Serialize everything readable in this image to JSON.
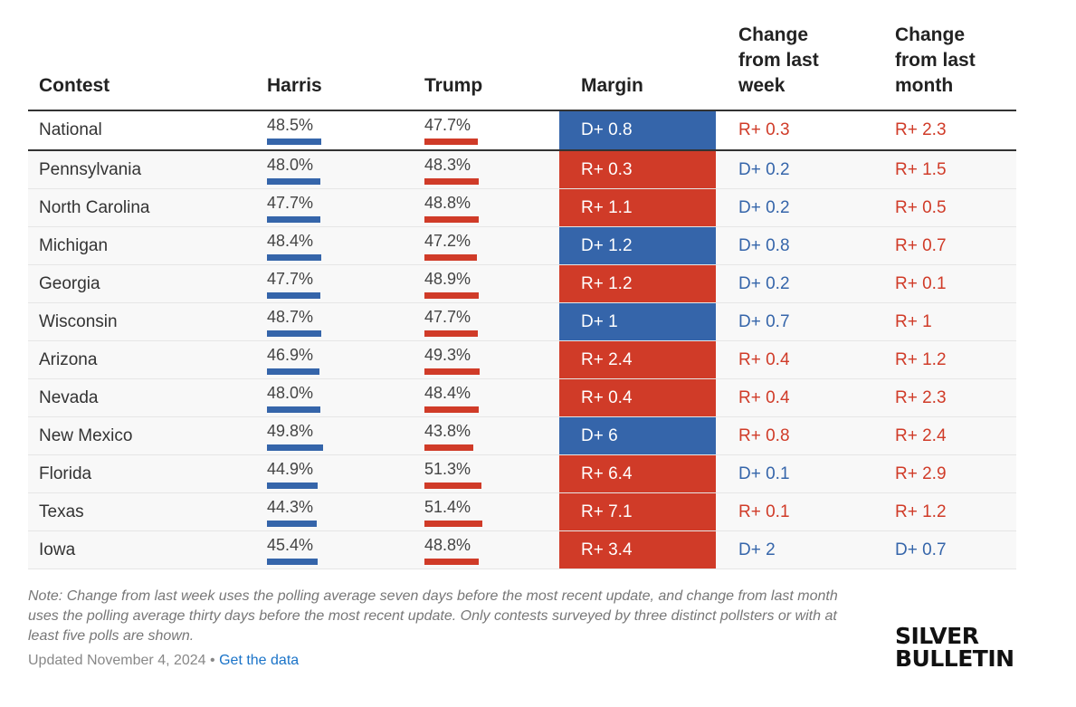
{
  "colors": {
    "dem": "#3565aa",
    "rep": "#d03b28"
  },
  "header": {
    "contest": "Contest",
    "harris": "Harris",
    "trump": "Trump",
    "margin": "Margin",
    "week_line1": "Change",
    "week_line2": "from last",
    "week_line3": "week",
    "month_line1": "Change",
    "month_line2": "from last",
    "month_line3": "month"
  },
  "chart_data": {
    "type": "table",
    "columns": [
      "Contest",
      "Harris",
      "Trump",
      "Margin",
      "Change from last week",
      "Change from last month"
    ],
    "rows": [
      {
        "contest": "National",
        "harris": "48.5%",
        "harris_value": 48.5,
        "trump": "47.7%",
        "trump_value": 47.7,
        "margin": "D+ 0.8",
        "margin_party": "D",
        "week": "R+ 0.3",
        "week_party": "R",
        "month": "R+ 2.3",
        "month_party": "R"
      },
      {
        "contest": "Pennsylvania",
        "harris": "48.0%",
        "harris_value": 48.0,
        "trump": "48.3%",
        "trump_value": 48.3,
        "margin": "R+ 0.3",
        "margin_party": "R",
        "week": "D+ 0.2",
        "week_party": "D",
        "month": "R+ 1.5",
        "month_party": "R"
      },
      {
        "contest": "North Carolina",
        "harris": "47.7%",
        "harris_value": 47.7,
        "trump": "48.8%",
        "trump_value": 48.8,
        "margin": "R+ 1.1",
        "margin_party": "R",
        "week": "D+ 0.2",
        "week_party": "D",
        "month": "R+ 0.5",
        "month_party": "R"
      },
      {
        "contest": "Michigan",
        "harris": "48.4%",
        "harris_value": 48.4,
        "trump": "47.2%",
        "trump_value": 47.2,
        "margin": "D+ 1.2",
        "margin_party": "D",
        "week": "D+ 0.8",
        "week_party": "D",
        "month": "R+ 0.7",
        "month_party": "R"
      },
      {
        "contest": "Georgia",
        "harris": "47.7%",
        "harris_value": 47.7,
        "trump": "48.9%",
        "trump_value": 48.9,
        "margin": "R+ 1.2",
        "margin_party": "R",
        "week": "D+ 0.2",
        "week_party": "D",
        "month": "R+ 0.1",
        "month_party": "R"
      },
      {
        "contest": "Wisconsin",
        "harris": "48.7%",
        "harris_value": 48.7,
        "trump": "47.7%",
        "trump_value": 47.7,
        "margin": "D+ 1",
        "margin_party": "D",
        "week": "D+ 0.7",
        "week_party": "D",
        "month": "R+ 1",
        "month_party": "R"
      },
      {
        "contest": "Arizona",
        "harris": "46.9%",
        "harris_value": 46.9,
        "trump": "49.3%",
        "trump_value": 49.3,
        "margin": "R+ 2.4",
        "margin_party": "R",
        "week": "R+ 0.4",
        "week_party": "R",
        "month": "R+ 1.2",
        "month_party": "R"
      },
      {
        "contest": "Nevada",
        "harris": "48.0%",
        "harris_value": 48.0,
        "trump": "48.4%",
        "trump_value": 48.4,
        "margin": "R+ 0.4",
        "margin_party": "R",
        "week": "R+ 0.4",
        "week_party": "R",
        "month": "R+ 2.3",
        "month_party": "R"
      },
      {
        "contest": "New Mexico",
        "harris": "49.8%",
        "harris_value": 49.8,
        "trump": "43.8%",
        "trump_value": 43.8,
        "margin": "D+ 6",
        "margin_party": "D",
        "week": "R+ 0.8",
        "week_party": "R",
        "month": "R+ 2.4",
        "month_party": "R"
      },
      {
        "contest": "Florida",
        "harris": "44.9%",
        "harris_value": 44.9,
        "trump": "51.3%",
        "trump_value": 51.3,
        "margin": "R+ 6.4",
        "margin_party": "R",
        "week": "D+ 0.1",
        "week_party": "D",
        "month": "R+ 2.9",
        "month_party": "R"
      },
      {
        "contest": "Texas",
        "harris": "44.3%",
        "harris_value": 44.3,
        "trump": "51.4%",
        "trump_value": 51.4,
        "margin": "R+ 7.1",
        "margin_party": "R",
        "week": "R+ 0.1",
        "week_party": "R",
        "month": "R+ 1.2",
        "month_party": "R"
      },
      {
        "contest": "Iowa",
        "harris": "45.4%",
        "harris_value": 45.4,
        "trump": "48.8%",
        "trump_value": 48.8,
        "margin": "R+ 3.4",
        "margin_party": "R",
        "week": "D+ 2",
        "week_party": "D",
        "month": "D+ 0.7",
        "month_party": "D"
      }
    ]
  },
  "footer": {
    "note": "Note: Change from last week uses the polling average seven days before the most recent update, and change from last month uses the polling average thirty days before the most recent update. Only contests surveyed by three distinct pollsters or with at least five polls are shown.",
    "updated": "Updated November 4, 2024",
    "separator": "•",
    "data_link": "Get the data",
    "logo_line1": "SILVER",
    "logo_line2": "BULLETIN"
  }
}
